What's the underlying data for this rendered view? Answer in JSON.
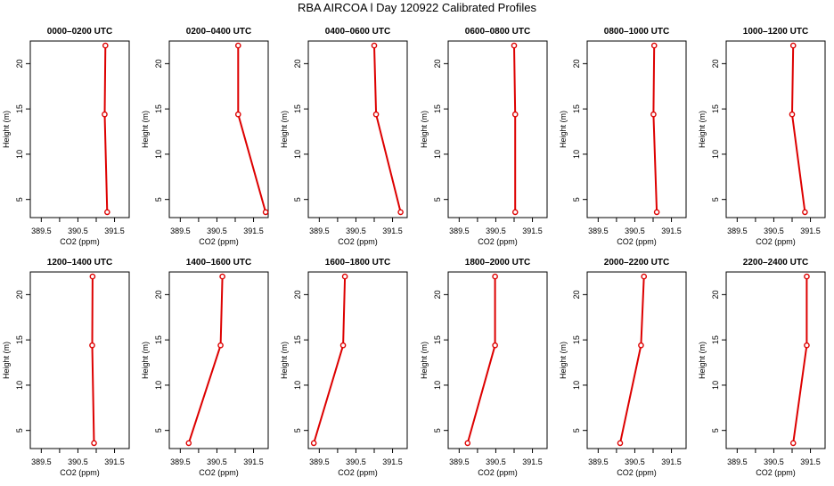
{
  "page_title": "RBA AIRCOA l  Day 120922  Calibrated Profiles",
  "colors": {
    "line": "#dd0000",
    "axis": "#000000",
    "background": "#ffffff"
  },
  "chart_data": [
    {
      "type": "line",
      "title": "0000–0200 UTC",
      "xlabel": "CO2 (ppm)",
      "ylabel": "Height (m)",
      "xlim": [
        389.2,
        391.9
      ],
      "ylim": [
        3,
        22.5
      ],
      "xticks": [
        "389.5",
        "390.5",
        "391.5"
      ],
      "yticks": [
        "5",
        "10",
        "15",
        "20"
      ],
      "x": [
        391.25,
        391.23,
        391.3
      ],
      "y": [
        22,
        14.4,
        3.6
      ]
    },
    {
      "type": "line",
      "title": "0200–0400 UTC",
      "xlabel": "CO2 (ppm)",
      "ylabel": "Height (m)",
      "xlim": [
        389.2,
        391.9
      ],
      "ylim": [
        3,
        22.5
      ],
      "xticks": [
        "389.5",
        "390.5",
        "391.5"
      ],
      "yticks": [
        "5",
        "10",
        "15",
        "20"
      ],
      "x": [
        391.08,
        391.08,
        391.83
      ],
      "y": [
        22,
        14.4,
        3.6
      ]
    },
    {
      "type": "line",
      "title": "0400–0600 UTC",
      "xlabel": "CO2 (ppm)",
      "ylabel": "Height (m)",
      "xlim": [
        389.2,
        391.9
      ],
      "ylim": [
        3,
        22.5
      ],
      "xticks": [
        "389.5",
        "390.5",
        "391.5"
      ],
      "yticks": [
        "5",
        "10",
        "15",
        "20"
      ],
      "x": [
        391.0,
        391.05,
        391.72
      ],
      "y": [
        22,
        14.4,
        3.6
      ]
    },
    {
      "type": "line",
      "title": "0600–0800 UTC",
      "xlabel": "CO2 (ppm)",
      "ylabel": "Height (m)",
      "xlim": [
        389.2,
        391.9
      ],
      "ylim": [
        3,
        22.5
      ],
      "xticks": [
        "389.5",
        "390.5",
        "391.5"
      ],
      "yticks": [
        "5",
        "10",
        "15",
        "20"
      ],
      "x": [
        391.0,
        391.03,
        391.03
      ],
      "y": [
        22,
        14.4,
        3.6
      ]
    },
    {
      "type": "line",
      "title": "0800–1000 UTC",
      "xlabel": "CO2 (ppm)",
      "ylabel": "Height (m)",
      "xlim": [
        389.2,
        391.9
      ],
      "ylim": [
        3,
        22.5
      ],
      "xticks": [
        "389.5",
        "390.5",
        "391.5"
      ],
      "yticks": [
        "5",
        "10",
        "15",
        "20"
      ],
      "x": [
        391.03,
        391.01,
        391.1
      ],
      "y": [
        22,
        14.4,
        3.6
      ]
    },
    {
      "type": "line",
      "title": "1000–1200 UTC",
      "xlabel": "CO2 (ppm)",
      "ylabel": "Height (m)",
      "xlim": [
        389.2,
        391.9
      ],
      "ylim": [
        3,
        22.5
      ],
      "xticks": [
        "389.5",
        "390.5",
        "391.5"
      ],
      "yticks": [
        "5",
        "10",
        "15",
        "20"
      ],
      "x": [
        391.03,
        391.0,
        391.35
      ],
      "y": [
        22,
        14.4,
        3.6
      ]
    },
    {
      "type": "line",
      "title": "1200–1400 UTC",
      "xlabel": "CO2 (ppm)",
      "ylabel": "Height (m)",
      "xlim": [
        389.2,
        391.9
      ],
      "ylim": [
        3,
        22.5
      ],
      "xticks": [
        "389.5",
        "390.5",
        "391.5"
      ],
      "yticks": [
        "5",
        "10",
        "15",
        "20"
      ],
      "x": [
        390.9,
        390.89,
        390.94
      ],
      "y": [
        22,
        14.4,
        3.6
      ]
    },
    {
      "type": "line",
      "title": "1400–1600 UTC",
      "xlabel": "CO2 (ppm)",
      "ylabel": "Height (m)",
      "xlim": [
        389.2,
        391.9
      ],
      "ylim": [
        3,
        22.5
      ],
      "xticks": [
        "389.5",
        "390.5",
        "391.5"
      ],
      "yticks": [
        "5",
        "10",
        "15",
        "20"
      ],
      "x": [
        390.65,
        390.6,
        389.73
      ],
      "y": [
        22,
        14.4,
        3.6
      ]
    },
    {
      "type": "line",
      "title": "1600–1800 UTC",
      "xlabel": "CO2 (ppm)",
      "ylabel": "Height (m)",
      "xlim": [
        389.2,
        391.9
      ],
      "ylim": [
        3,
        22.5
      ],
      "xticks": [
        "389.5",
        "390.5",
        "391.5"
      ],
      "yticks": [
        "5",
        "10",
        "15",
        "20"
      ],
      "x": [
        390.2,
        390.15,
        389.35
      ],
      "y": [
        22,
        14.4,
        3.6
      ]
    },
    {
      "type": "line",
      "title": "1800–2000 UTC",
      "xlabel": "CO2 (ppm)",
      "ylabel": "Height (m)",
      "xlim": [
        389.2,
        391.9
      ],
      "ylim": [
        3,
        22.5
      ],
      "xticks": [
        "389.5",
        "390.5",
        "391.5"
      ],
      "yticks": [
        "5",
        "10",
        "15",
        "20"
      ],
      "x": [
        390.48,
        390.48,
        389.73
      ],
      "y": [
        22,
        14.4,
        3.6
      ]
    },
    {
      "type": "line",
      "title": "2000–2200 UTC",
      "xlabel": "CO2 (ppm)",
      "ylabel": "Height (m)",
      "xlim": [
        389.2,
        391.9
      ],
      "ylim": [
        3,
        22.5
      ],
      "xticks": [
        "389.5",
        "390.5",
        "391.5"
      ],
      "yticks": [
        "5",
        "10",
        "15",
        "20"
      ],
      "x": [
        390.75,
        390.67,
        390.1
      ],
      "y": [
        22,
        14.4,
        3.6
      ]
    },
    {
      "type": "line",
      "title": "2200–2400 UTC",
      "xlabel": "CO2 (ppm)",
      "ylabel": "Height (m)",
      "xlim": [
        389.2,
        391.9
      ],
      "ylim": [
        3,
        22.5
      ],
      "xticks": [
        "389.5",
        "390.5",
        "391.5"
      ],
      "yticks": [
        "5",
        "10",
        "15",
        "20"
      ],
      "x": [
        391.4,
        391.4,
        391.03
      ],
      "y": [
        22,
        14.4,
        3.6
      ]
    }
  ]
}
